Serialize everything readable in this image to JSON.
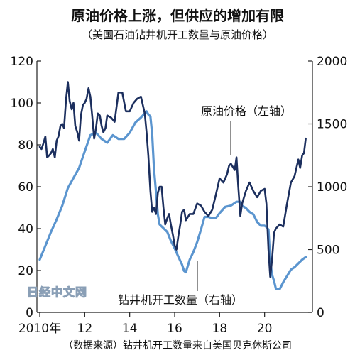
{
  "chart_data": {
    "type": "line",
    "title": "原油价格上涨，但供应的增加有限",
    "subtitle": "（美国石油钻井机开工数量与原油价格）",
    "source": "（数据来源）钻井机开工数量来自美国贝克休斯公司",
    "watermark": "日经中文网",
    "x_ticks": [
      "2010年",
      "12",
      "14",
      "16",
      "18",
      "20"
    ],
    "x_range": [
      2010,
      2022
    ],
    "left_axis": {
      "range": [
        0,
        120
      ],
      "ticks": [
        "0",
        "20",
        "40",
        "60",
        "80",
        "100",
        "120"
      ]
    },
    "right_axis": {
      "range": [
        0,
        2000
      ],
      "ticks": [
        "0",
        "500",
        "1000",
        "1500",
        "2000"
      ]
    },
    "colors": {
      "oil": "#1c2f5e",
      "rigs": "#5b95cf"
    },
    "series": [
      {
        "name": "原油价格（左轴）",
        "axis": "left",
        "x": [
          2010.0,
          2010.08,
          2010.17,
          2010.25,
          2010.33,
          2010.42,
          2010.5,
          2010.58,
          2010.67,
          2010.75,
          2010.83,
          2010.92,
          2011.0,
          2011.08,
          2011.17,
          2011.25,
          2011.33,
          2011.42,
          2011.5,
          2011.58,
          2011.67,
          2011.75,
          2011.83,
          2011.92,
          2012.0,
          2012.08,
          2012.17,
          2012.25,
          2012.33,
          2012.42,
          2012.5,
          2012.58,
          2012.67,
          2012.75,
          2012.83,
          2012.92,
          2013.0,
          2013.17,
          2013.33,
          2013.5,
          2013.67,
          2013.83,
          2014.0,
          2014.17,
          2014.33,
          2014.5,
          2014.67,
          2014.75,
          2014.83,
          2014.92,
          2015.0,
          2015.08,
          2015.17,
          2015.25,
          2015.33,
          2015.42,
          2015.5,
          2015.58,
          2015.67,
          2015.75,
          2015.83,
          2015.92,
          2016.0,
          2016.08,
          2016.17,
          2016.25,
          2016.33,
          2016.42,
          2016.5,
          2016.67,
          2016.83,
          2017.0,
          2017.17,
          2017.33,
          2017.5,
          2017.67,
          2017.83,
          2018.0,
          2018.17,
          2018.33,
          2018.42,
          2018.5,
          2018.67,
          2018.75,
          2018.83,
          2018.92,
          2019.0,
          2019.17,
          2019.33,
          2019.5,
          2019.67,
          2019.83,
          2020.0,
          2020.08,
          2020.17,
          2020.25,
          2020.33,
          2020.42,
          2020.5,
          2020.67,
          2020.83,
          2021.0,
          2021.17,
          2021.33,
          2021.5,
          2021.58,
          2021.67,
          2021.75,
          2021.83
        ],
        "values": [
          79,
          78,
          81,
          84,
          74,
          75,
          76,
          78,
          74,
          82,
          84,
          89,
          90,
          88,
          102,
          110,
          101,
          97,
          100,
          89,
          86,
          82,
          94,
          99,
          100,
          102,
          107,
          103,
          94,
          83,
          88,
          95,
          94,
          89,
          86,
          88,
          94,
          93,
          91,
          105,
          105,
          96,
          96,
          100,
          102,
          103,
          95,
          86,
          75,
          58,
          48,
          50,
          47,
          57,
          60,
          60,
          50,
          42,
          45,
          47,
          42,
          37,
          32,
          30,
          37,
          42,
          48,
          49,
          44,
          47,
          47,
          52,
          51,
          48,
          46,
          49,
          56,
          64,
          62,
          66,
          70,
          71,
          68,
          74,
          60,
          46,
          52,
          58,
          62,
          58,
          55,
          58,
          59,
          52,
          30,
          17,
          25,
          38,
          40,
          42,
          41,
          52,
          62,
          65,
          73,
          69,
          75,
          76,
          83
        ]
      },
      {
        "name": "钻井机开工数量（右轴）",
        "axis": "right",
        "x": [
          2010.0,
          2010.25,
          2010.5,
          2010.75,
          2011.0,
          2011.25,
          2011.5,
          2011.75,
          2012.0,
          2012.25,
          2012.5,
          2012.75,
          2013.0,
          2013.25,
          2013.5,
          2013.75,
          2014.0,
          2014.25,
          2014.5,
          2014.75,
          2014.83,
          2014.92,
          2015.0,
          2015.08,
          2015.17,
          2015.25,
          2015.33,
          2015.5,
          2015.67,
          2015.83,
          2016.0,
          2016.17,
          2016.33,
          2016.42,
          2016.5,
          2016.67,
          2016.83,
          2017.0,
          2017.17,
          2017.33,
          2017.5,
          2017.67,
          2017.83,
          2018.0,
          2018.25,
          2018.5,
          2018.75,
          2018.92,
          2019.0,
          2019.17,
          2019.33,
          2019.5,
          2019.67,
          2019.83,
          2020.0,
          2020.08,
          2020.17,
          2020.25,
          2020.33,
          2020.42,
          2020.5,
          2020.58,
          2020.67,
          2020.83,
          2021.0,
          2021.17,
          2021.33,
          2021.5,
          2021.67,
          2021.83
        ],
        "values": [
          420,
          530,
          640,
          740,
          850,
          990,
          1070,
          1150,
          1280,
          1410,
          1430,
          1380,
          1350,
          1410,
          1380,
          1380,
          1430,
          1510,
          1550,
          1600,
          1575,
          1560,
          1420,
          1140,
          960,
          780,
          700,
          670,
          640,
          570,
          510,
          440,
          380,
          330,
          320,
          420,
          480,
          560,
          660,
          760,
          760,
          750,
          750,
          790,
          840,
          850,
          880,
          880,
          850,
          830,
          800,
          780,
          720,
          690,
          690,
          680,
          660,
          410,
          300,
          250,
          190,
          185,
          185,
          240,
          290,
          340,
          360,
          390,
          420,
          440
        ]
      }
    ],
    "labels": {
      "oil": "原油价格（左轴）",
      "rigs": "钻井机开工数量（右轴）"
    }
  }
}
